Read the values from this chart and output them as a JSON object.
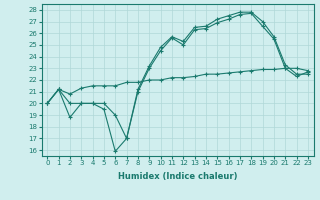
{
  "line1_x": [
    0,
    1,
    2,
    3,
    4,
    5,
    6,
    7,
    8,
    9,
    10,
    11,
    12,
    13,
    14,
    15,
    16,
    17,
    18,
    19,
    20,
    21,
    22,
    23
  ],
  "line1_y": [
    20.0,
    21.2,
    20.0,
    20.0,
    20.0,
    19.5,
    15.9,
    17.0,
    21.2,
    23.2,
    24.8,
    25.7,
    25.3,
    26.5,
    26.6,
    27.2,
    27.5,
    27.8,
    27.8,
    27.0,
    25.7,
    23.3,
    22.5,
    22.5
  ],
  "line2_x": [
    0,
    1,
    2,
    3,
    4,
    5,
    6,
    7,
    8,
    9,
    10,
    11,
    12,
    13,
    14,
    15,
    16,
    17,
    18,
    19,
    20,
    21,
    22,
    23
  ],
  "line2_y": [
    20.0,
    21.2,
    18.8,
    20.0,
    20.0,
    20.0,
    19.0,
    17.0,
    21.0,
    23.0,
    24.5,
    25.6,
    25.0,
    26.3,
    26.4,
    26.9,
    27.2,
    27.6,
    27.7,
    26.6,
    25.5,
    23.0,
    22.3,
    22.7
  ],
  "line3_x": [
    0,
    1,
    2,
    3,
    4,
    5,
    6,
    7,
    8,
    9,
    10,
    11,
    12,
    13,
    14,
    15,
    16,
    17,
    18,
    19,
    20,
    21,
    22,
    23
  ],
  "line3_y": [
    20.0,
    21.2,
    20.8,
    21.3,
    21.5,
    21.5,
    21.5,
    21.8,
    21.8,
    22.0,
    22.0,
    22.2,
    22.2,
    22.3,
    22.5,
    22.5,
    22.6,
    22.7,
    22.8,
    22.9,
    22.9,
    23.0,
    23.0,
    22.8
  ],
  "line_color": "#1a7a6e",
  "bg_color": "#d0eeee",
  "grid_color": "#b0d8d8",
  "xlabel": "Humidex (Indice chaleur)",
  "ylim": [
    15.5,
    28.5
  ],
  "xlim": [
    -0.5,
    23.5
  ],
  "yticks": [
    16,
    17,
    18,
    19,
    20,
    21,
    22,
    23,
    24,
    25,
    26,
    27,
    28
  ],
  "xticks": [
    0,
    1,
    2,
    3,
    4,
    5,
    6,
    7,
    8,
    9,
    10,
    11,
    12,
    13,
    14,
    15,
    16,
    17,
    18,
    19,
    20,
    21,
    22,
    23
  ],
  "tick_fontsize": 5.0,
  "xlabel_fontsize": 6.0
}
